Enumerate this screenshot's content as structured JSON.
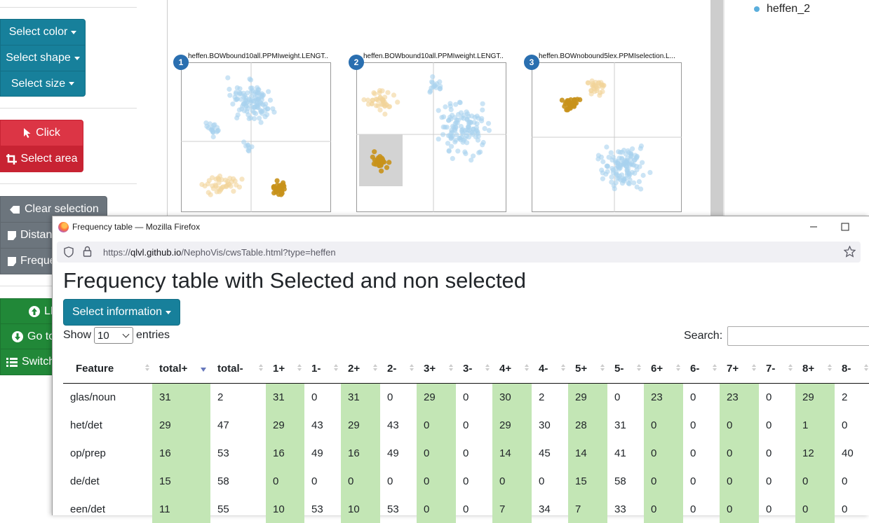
{
  "sidebar": {
    "select_color": "Select color",
    "select_shape": "Select shape",
    "select_size": "Select size",
    "click": "Click",
    "select_area": "Select area",
    "clear_selection": "Clear selection",
    "distances": "Distan",
    "frequency": "Freque",
    "level_up": "LE",
    "go_to": "Go to",
    "switch": "Switch"
  },
  "legend": {
    "item": "heffen_2"
  },
  "plots": [
    {
      "number": "1",
      "title": "heffen.BOWbound10all.PPMIweight.LENGT..."
    },
    {
      "number": "2",
      "title": "heffen.BOWbound10all.PPMIweight.LENGT..."
    },
    {
      "number": "3",
      "title": "heffen.BOWnobound5lex.PPMIselection.L..."
    }
  ],
  "colors": {
    "light_blue": "#a9d2ee",
    "light_orange": "#f2d39a",
    "gold": "#c8921b",
    "accent": "#17809b"
  },
  "browser": {
    "window_title": "Frequency table — Mozilla Firefox",
    "url_prefix": "https://",
    "url_host": "qlvl.github.io",
    "url_path": "/NephoVis/cwsTable.html?type=heffen"
  },
  "page": {
    "heading": "Frequency table with Selected and non selected",
    "select_information": "Select information",
    "show_label": "Show",
    "entries_value": "10",
    "entries_label": "entries",
    "search_label": "Search:"
  },
  "table": {
    "columns": [
      "Feature",
      "total+",
      "total-",
      "1+",
      "1-",
      "2+",
      "2-",
      "3+",
      "3-",
      "4+",
      "4-",
      "5+",
      "5-",
      "6+",
      "6-",
      "7+",
      "7-",
      "8+",
      "8-"
    ],
    "rows": [
      [
        "glas/noun",
        "31",
        "2",
        "31",
        "0",
        "31",
        "0",
        "29",
        "0",
        "30",
        "2",
        "29",
        "0",
        "23",
        "0",
        "23",
        "0",
        "29",
        "2"
      ],
      [
        "het/det",
        "29",
        "47",
        "29",
        "43",
        "29",
        "43",
        "0",
        "0",
        "29",
        "30",
        "28",
        "31",
        "0",
        "0",
        "0",
        "0",
        "1",
        "0"
      ],
      [
        "op/prep",
        "16",
        "53",
        "16",
        "49",
        "16",
        "49",
        "0",
        "0",
        "14",
        "45",
        "14",
        "41",
        "0",
        "0",
        "0",
        "0",
        "12",
        "40"
      ],
      [
        "de/det",
        "15",
        "58",
        "0",
        "0",
        "0",
        "0",
        "0",
        "0",
        "0",
        "0",
        "15",
        "58",
        "0",
        "0",
        "0",
        "0",
        "0",
        "0"
      ],
      [
        "een/det",
        "11",
        "55",
        "10",
        "53",
        "10",
        "53",
        "0",
        "0",
        "7",
        "34",
        "7",
        "33",
        "0",
        "0",
        "0",
        "0",
        "0",
        "0"
      ]
    ]
  }
}
